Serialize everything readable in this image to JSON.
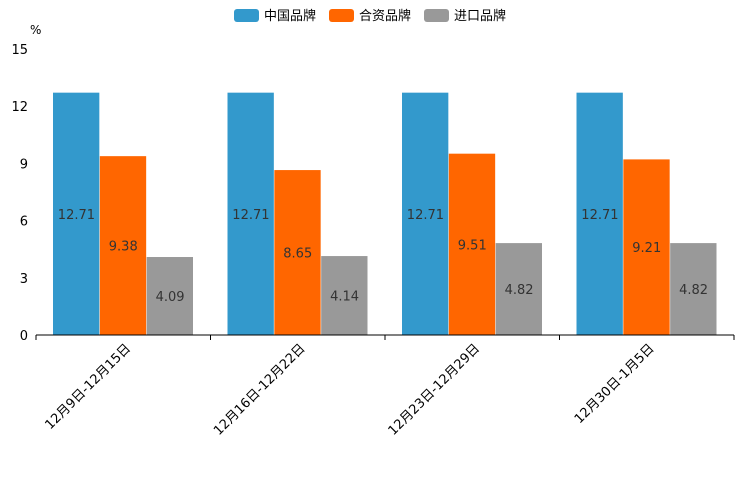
{
  "chart_data": {
    "type": "bar",
    "unit_label": "%",
    "categories": [
      "12月9日-12月15日",
      "12月16日-12月22日",
      "12月23日-12月29日",
      "12月30日-1月5日"
    ],
    "series": [
      {
        "name": "中国品牌",
        "color": "#3399cc",
        "values": [
          12.71,
          12.71,
          12.71,
          12.71
        ],
        "labels": [
          "12.71",
          "12.71",
          "12.71",
          "12.71"
        ]
      },
      {
        "name": "合资品牌",
        "color": "#ff6600",
        "values": [
          9.38,
          8.65,
          9.51,
          9.21
        ],
        "labels": [
          "9.38",
          "8.65",
          "9.51",
          "9.21"
        ]
      },
      {
        "name": "进口品牌",
        "color": "#999999",
        "values": [
          4.09,
          4.14,
          4.82,
          4.82
        ],
        "labels": [
          "4.09",
          "4.14",
          "4.82",
          "4.82"
        ]
      }
    ],
    "yticks": [
      "0",
      "3",
      "6",
      "9",
      "12",
      "15"
    ],
    "ylim": [
      0,
      15
    ],
    "legend_position": "top-center",
    "grid": false
  }
}
